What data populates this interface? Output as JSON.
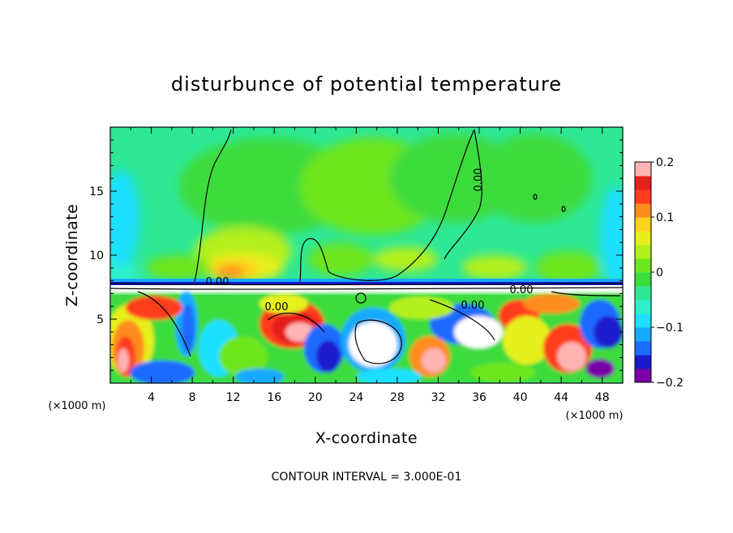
{
  "chart_data": {
    "type": "heatmap",
    "title": "disturbunce of potential temperature",
    "xlabel": "X-coordinate",
    "ylabel": "Z-coordinate",
    "xunit_left": "(×1000 m)",
    "xunit_right": "(×1000 m)",
    "contour_note": "CONTOUR INTERVAL = 3.000E-01",
    "xlim": [
      0,
      50
    ],
    "ylim": [
      0,
      20
    ],
    "xticks": [
      "4",
      "8",
      "12",
      "16",
      "20",
      "24",
      "28",
      "32",
      "36",
      "40",
      "44",
      "48"
    ],
    "yticks": [
      "5",
      "10",
      "15"
    ],
    "colorbar": {
      "range": [
        -0.2,
        0.2
      ],
      "tick_labels": [
        "0.2",
        "0.1",
        "0",
        "−0.1",
        "−0.2"
      ],
      "colors": [
        "#7a00a8",
        "#1a1acc",
        "#1e6bff",
        "#17aaff",
        "#1ee0ff",
        "#2ef0c8",
        "#2ee896",
        "#3cdc3c",
        "#6ee61e",
        "#b4f01e",
        "#e6f01e",
        "#ffd21e",
        "#ff8c1e",
        "#ff3c1e",
        "#e61e1e",
        "#ffb4b4"
      ]
    },
    "contour_labels": [
      "0.00",
      "0.00",
      "0.00",
      "0.00",
      "0.00"
    ]
  }
}
